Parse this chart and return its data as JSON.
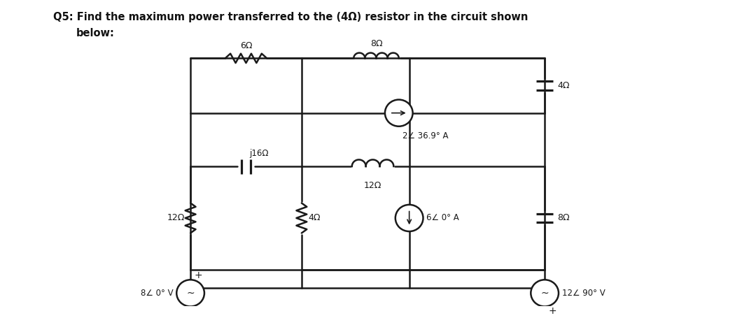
{
  "title_line1": "Q5: Find the maximum power transferred to the (4Ω) resistor in the circuit shown",
  "title_line2": "below:",
  "bg_color": "#ffffff",
  "circuit_color": "#1a1a1a",
  "fig_width": 10.8,
  "fig_height": 4.55,
  "dpi": 100,
  "labels": {
    "R_top_left": "6Ω",
    "L_top_right": "8Ω",
    "CS_mid": "2∠ 36.9° A",
    "C_right_top": "4Ω",
    "C_mid_left": "j16Ω",
    "L_mid_right": "12Ω",
    "R_bot_left": "12Ω",
    "R_bot_mid": "4Ω",
    "CS_bot": "6∠ 0° A",
    "C_right_bot": "8Ω",
    "VS_left": "8∠ 0° V",
    "VS_right": "12∠ 90° V"
  }
}
